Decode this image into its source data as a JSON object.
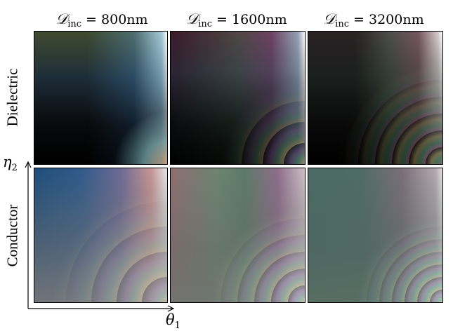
{
  "columns": [
    {
      "symbol": "𝒟",
      "subscript": "inc",
      "suffix": " = 800nm"
    },
    {
      "symbol": "𝒟",
      "subscript": "inc",
      "suffix": " = 1600nm"
    },
    {
      "symbol": "𝒟",
      "subscript": "inc",
      "suffix": " = 3200nm"
    }
  ],
  "rows": [
    {
      "label": "Dielectric"
    },
    {
      "label": "Conductor"
    }
  ],
  "axes": {
    "y": {
      "symbol": "η",
      "subscript": "2"
    },
    "x": {
      "symbol": "θ",
      "subscript": "1"
    }
  }
}
